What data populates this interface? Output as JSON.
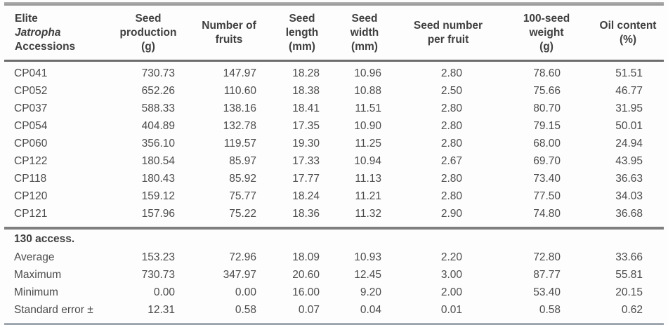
{
  "table": {
    "columns": [
      {
        "id": "accessions",
        "lines": [
          {
            "text": "Elite"
          },
          {
            "text": "Jatropha",
            "italic": true
          },
          {
            "text": "Accessions"
          }
        ]
      },
      {
        "id": "seed-production",
        "lines": [
          {
            "text": "Seed"
          },
          {
            "text": "production"
          },
          {
            "text": "(g)"
          }
        ]
      },
      {
        "id": "number-of-fruits",
        "lines": [
          {
            "text": "Number of"
          },
          {
            "text": "fruits"
          }
        ]
      },
      {
        "id": "seed-length",
        "lines": [
          {
            "text": "Seed"
          },
          {
            "text": "length"
          },
          {
            "text": "(mm)"
          }
        ]
      },
      {
        "id": "seed-width",
        "lines": [
          {
            "text": "Seed"
          },
          {
            "text": "width"
          },
          {
            "text": "(mm)"
          }
        ]
      },
      {
        "id": "seed-number-per-fruit",
        "lines": [
          {
            "text": "Seed number"
          },
          {
            "text": "per fruit"
          }
        ]
      },
      {
        "id": "hundred-seed-weight",
        "lines": [
          {
            "text": "100-seed"
          },
          {
            "text": "weight"
          },
          {
            "text": "(g)"
          }
        ]
      },
      {
        "id": "oil-content",
        "lines": [
          {
            "text": "Oil content"
          },
          {
            "text": "(%)"
          }
        ]
      }
    ],
    "rows": [
      {
        "label": "CP041",
        "values": [
          "730.73",
          "147.97",
          "18.28",
          "10.96",
          "2.80",
          "78.60",
          "51.51"
        ]
      },
      {
        "label": "CP052",
        "values": [
          "652.26",
          "110.60",
          "18.38",
          "10.88",
          "2.50",
          "75.66",
          "46.77"
        ]
      },
      {
        "label": "CP037",
        "values": [
          "588.33",
          "138.16",
          "18.41",
          "11.51",
          "2.80",
          "80.70",
          "31.95"
        ]
      },
      {
        "label": "CP054",
        "values": [
          "404.89",
          "132.78",
          "17.35",
          "10.90",
          "2.80",
          "79.15",
          "50.01"
        ]
      },
      {
        "label": "CP060",
        "values": [
          "356.10",
          "119.57",
          "19.30",
          "11.25",
          "2.80",
          "68.00",
          "24.94"
        ]
      },
      {
        "label": "CP122",
        "values": [
          "180.54",
          "85.97",
          "17.33",
          "10.94",
          "2.67",
          "69.70",
          "43.95"
        ]
      },
      {
        "label": "CP118",
        "values": [
          "180.43",
          "85.92",
          "17.77",
          "11.13",
          "2.80",
          "73.40",
          "36.63"
        ]
      },
      {
        "label": "CP120",
        "values": [
          "159.12",
          "75.77",
          "18.24",
          "11.21",
          "2.80",
          "77.50",
          "34.03"
        ]
      },
      {
        "label": "CP121",
        "values": [
          "157.96",
          "75.22",
          "18.36",
          "11.32",
          "2.90",
          "74.80",
          "36.68"
        ]
      }
    ],
    "section_label": "130 access.",
    "summary_rows": [
      {
        "label": "Average",
        "values": [
          "153.23",
          "72.96",
          "18.09",
          "10.93",
          "2.20",
          "72.80",
          "33.66"
        ]
      },
      {
        "label": "Maximum",
        "values": [
          "730.73",
          "347.97",
          "20.60",
          "12.45",
          "3.00",
          "87.77",
          "55.81"
        ]
      },
      {
        "label": "Minimum",
        "values": [
          "0.00",
          "0.00",
          "16.00",
          "9.20",
          "2.00",
          "53.40",
          "20.15"
        ]
      },
      {
        "label": "Standard error ±",
        "values": [
          "12.31",
          "0.58",
          "0.07",
          "0.04",
          "0.01",
          "0.58",
          "0.62"
        ]
      }
    ],
    "colors": {
      "rule_gray": "#8f8f8f",
      "header_rule": "#6d6d6d",
      "section_rule": "#7f7f7f",
      "bottom_rule": "#9aa0a8",
      "text": "#4a4a4a"
    }
  }
}
